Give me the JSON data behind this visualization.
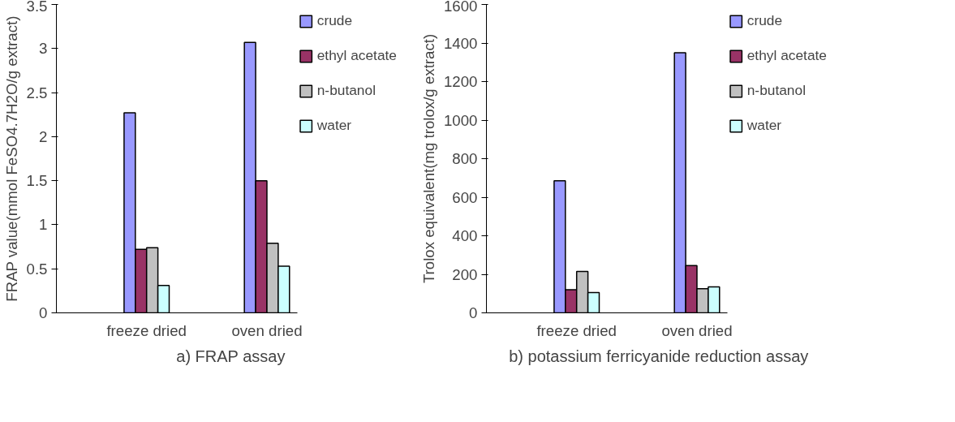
{
  "chart_data": [
    {
      "type": "bar",
      "title": "a) FRAP assay",
      "ylabel": "FRAP value(mmol FeSO4.7H2O/g extract)",
      "categories": [
        null,
        "freeze dried",
        null,
        "oven dried"
      ],
      "ylim": [
        0,
        3.5
      ],
      "yticks": [
        0,
        0.5,
        1,
        1.5,
        2,
        2.5,
        3,
        3.5
      ],
      "grid": false,
      "legend": "right",
      "series": [
        {
          "name": "crude",
          "color": "#9999ff",
          "values": [
            null,
            2.27,
            null,
            3.07
          ]
        },
        {
          "name": "ethyl acetate",
          "color": "#993366",
          "values": [
            null,
            0.72,
            null,
            1.5
          ]
        },
        {
          "name": "n-butanol",
          "color": "#c0c0c0",
          "values": [
            null,
            0.74,
            null,
            0.79
          ]
        },
        {
          "name": "water",
          "color": "#ccffff",
          "values": [
            null,
            0.31,
            null,
            0.53
          ]
        }
      ]
    },
    {
      "type": "bar",
      "title": "b) potassium ferricyanide  reduction assay",
      "ylabel": "Trolox equivalent(mg trolox/g extract)",
      "categories": [
        null,
        "freeze dried",
        null,
        "oven dried"
      ],
      "ylim": [
        0,
        1600
      ],
      "yticks": [
        0,
        200,
        400,
        600,
        800,
        1000,
        1200,
        1400,
        1600
      ],
      "grid": false,
      "legend": "right",
      "series": [
        {
          "name": "crude",
          "color": "#9999ff",
          "values": [
            null,
            685,
            null,
            1350
          ]
        },
        {
          "name": "ethyl acetate",
          "color": "#993366",
          "values": [
            null,
            120,
            null,
            245
          ]
        },
        {
          "name": "n-butanol",
          "color": "#c0c0c0",
          "values": [
            null,
            215,
            null,
            125
          ]
        },
        {
          "name": "water",
          "color": "#ccffff",
          "values": [
            null,
            105,
            null,
            135
          ]
        }
      ]
    }
  ]
}
